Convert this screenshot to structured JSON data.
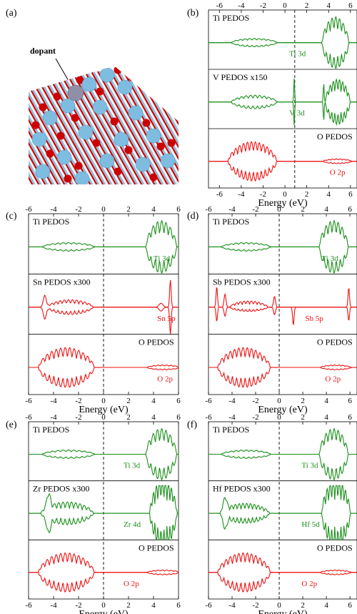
{
  "panel_a": {
    "label": "(a)",
    "dopant_label": "dopant"
  },
  "colors": {
    "ti": "#1a8f1a",
    "dopant": "#1a8f1a",
    "o": "#ee1111",
    "ti_atom": "#7fbde0",
    "o_atom": "#cc0000",
    "dopant_atom": "#8f8fa8"
  },
  "chart_data": [
    {
      "panel": "(b)",
      "type": "line",
      "xlabel": "Energy (eV)",
      "xlim": [
        -7,
        6.6
      ],
      "ticks": [
        -6,
        -4,
        -2,
        0,
        2,
        4,
        6
      ],
      "fermi": 0.9,
      "top_axis_labels": true,
      "bottom_axis_labels": true,
      "subplots": [
        {
          "title": "Ti PEDOS",
          "orbital": "Ti 3d",
          "color": "ti",
          "shape": "ti",
          "orbital_at": 0.4,
          "title_side": "left"
        },
        {
          "title": "V PEDOS x150",
          "orbital": "V 3d",
          "color": "dopant",
          "shape": "v",
          "orbital_at": 0.4,
          "title_side": "left"
        },
        {
          "title": "O PEDOS",
          "orbital": "O 2p",
          "color": "o",
          "shape": "o",
          "orbital_at": 4.1,
          "title_side": "right"
        }
      ]
    },
    {
      "panel": "(c)",
      "type": "line",
      "xlabel": "Energy (eV)",
      "xlim": [
        -6,
        6
      ],
      "ticks": [
        -6,
        -4,
        -2,
        0,
        2,
        4,
        6
      ],
      "fermi": 0,
      "top_axis_labels": true,
      "bottom_axis_labels": true,
      "subplots": [
        {
          "title": "Ti PEDOS",
          "orbital": "Ti 3d",
          "color": "ti",
          "shape": "ti",
          "orbital_at": 4.0,
          "title_side": "left"
        },
        {
          "title": "Sn PEDOS x300",
          "orbital": "Sn 5p",
          "color": "o",
          "shape": "sn",
          "orbital_at": 4.3,
          "title_side": "left"
        },
        {
          "title": "O PEDOS",
          "orbital": "O 2p",
          "color": "o",
          "shape": "o",
          "orbital_at": 4.3,
          "title_side": "right"
        }
      ]
    },
    {
      "panel": "(d)",
      "type": "line",
      "xlabel": "Energy (eV)",
      "xlim": [
        -6,
        6.6
      ],
      "ticks": [
        -6,
        -4,
        -2,
        0,
        2,
        4,
        6
      ],
      "fermi": 0,
      "top_axis_labels": true,
      "bottom_axis_labels": true,
      "subplots": [
        {
          "title": "Ti PEDOS",
          "orbital": "Ti 3d",
          "color": "ti",
          "shape": "ti",
          "orbital_at": 3.6,
          "title_side": "left"
        },
        {
          "title": "Sb PEDOS x300",
          "orbital": "Sb 5p",
          "color": "o",
          "shape": "sb",
          "orbital_at": 2.2,
          "title_side": "left"
        },
        {
          "title": "O PEDOS",
          "orbital": "O 2p",
          "color": "o",
          "shape": "o",
          "orbital_at": 3.9,
          "title_side": "right"
        }
      ]
    },
    {
      "panel": "(e)",
      "type": "line",
      "xlabel": "Energy (eV)",
      "xlim": [
        -6,
        6
      ],
      "ticks": [
        -6,
        -4,
        -2,
        0,
        2,
        4,
        6
      ],
      "fermi": 0,
      "top_axis_labels": true,
      "bottom_axis_labels": true,
      "subplots": [
        {
          "title": "Ti PEDOS",
          "orbital": "Ti 3d",
          "color": "ti",
          "shape": "ti",
          "orbital_at": 1.6,
          "title_side": "left"
        },
        {
          "title": "Zr PEDOS x300",
          "orbital": "Zr 4d",
          "color": "dopant",
          "shape": "zr",
          "orbital_at": 1.6,
          "title_side": "left"
        },
        {
          "title": "O PEDOS",
          "orbital": "O 2p",
          "color": "o",
          "shape": "o",
          "orbital_at": 1.6,
          "title_side": "right"
        }
      ]
    },
    {
      "panel": "(f)",
      "type": "line",
      "xlabel": "Energy (eV)",
      "xlim": [
        -6,
        6.6
      ],
      "ticks": [
        -6,
        -4,
        -2,
        0,
        2,
        4,
        6
      ],
      "fermi": 0,
      "top_axis_labels": true,
      "bottom_axis_labels": true,
      "subplots": [
        {
          "title": "Ti PEDOS",
          "orbital": "Ti 3d",
          "color": "ti",
          "shape": "ti",
          "orbital_at": 1.9,
          "title_side": "left"
        },
        {
          "title": "Hf PEDOS x300",
          "orbital": "Hf 5d",
          "color": "dopant",
          "shape": "hf",
          "orbital_at": 1.9,
          "title_side": "left"
        },
        {
          "title": "O PEDOS",
          "orbital": "O 2p",
          "color": "o",
          "shape": "o",
          "orbital_at": 1.9,
          "title_side": "right"
        }
      ]
    }
  ]
}
